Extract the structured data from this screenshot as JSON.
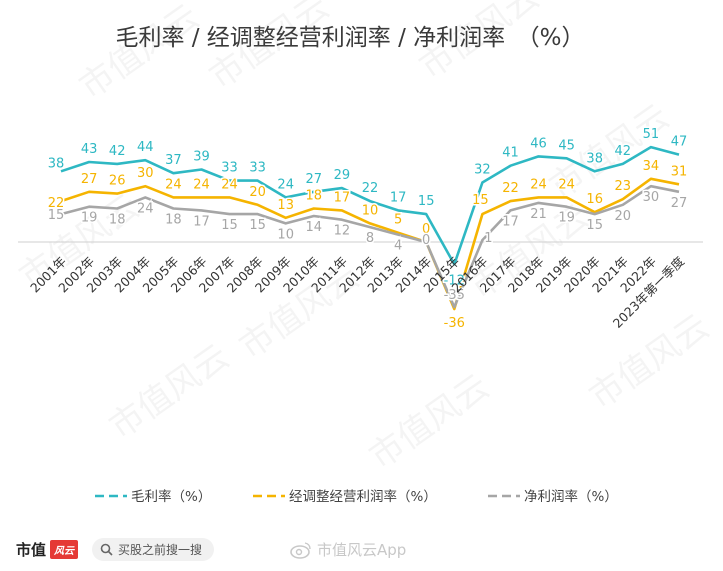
{
  "chart_data": {
    "type": "line",
    "title": "毛利率 / 经调整经营利润率 / 净利润率　（%）",
    "x": [
      "2001年",
      "2002年",
      "2003年",
      "2004年",
      "2005年",
      "2006年",
      "2007年",
      "2008年",
      "2009年",
      "2010年",
      "2011年",
      "2012年",
      "2013年",
      "2014年",
      "2015年",
      "2016年",
      "2017年",
      "2018年",
      "2019年",
      "2020年",
      "2021年",
      "2022年",
      "2023年第一季度"
    ],
    "series": [
      {
        "name": "毛利率（%）",
        "color": "#2eb8c3",
        "values": [
          38,
          43,
          42,
          44,
          37,
          39,
          33,
          33,
          24,
          27,
          29,
          22,
          17,
          15,
          -12,
          32,
          41,
          46,
          45,
          38,
          42,
          51,
          47
        ]
      },
      {
        "name": "经调整经营利润率（%）",
        "color": "#f5b400",
        "values": [
          22,
          27,
          26,
          30,
          24,
          24,
          24,
          20,
          13,
          18,
          17,
          10,
          5,
          0,
          -36,
          15,
          22,
          24,
          24,
          16,
          23,
          34,
          31
        ]
      },
      {
        "name": "净利润率（%）",
        "color": "#a6a6a6",
        "values": [
          15,
          19,
          18,
          24,
          18,
          17,
          15,
          15,
          10,
          14,
          12,
          8,
          4,
          0,
          -35,
          1,
          17,
          21,
          19,
          15,
          20,
          30,
          27
        ]
      }
    ],
    "ylim": [
      -40,
      58
    ],
    "grid": false,
    "legend_position": "bottom"
  },
  "footer": {
    "brand": "市值",
    "brand_badge": "风云",
    "search_text": "买股之前搜一搜",
    "watermark": "市值风云App"
  }
}
